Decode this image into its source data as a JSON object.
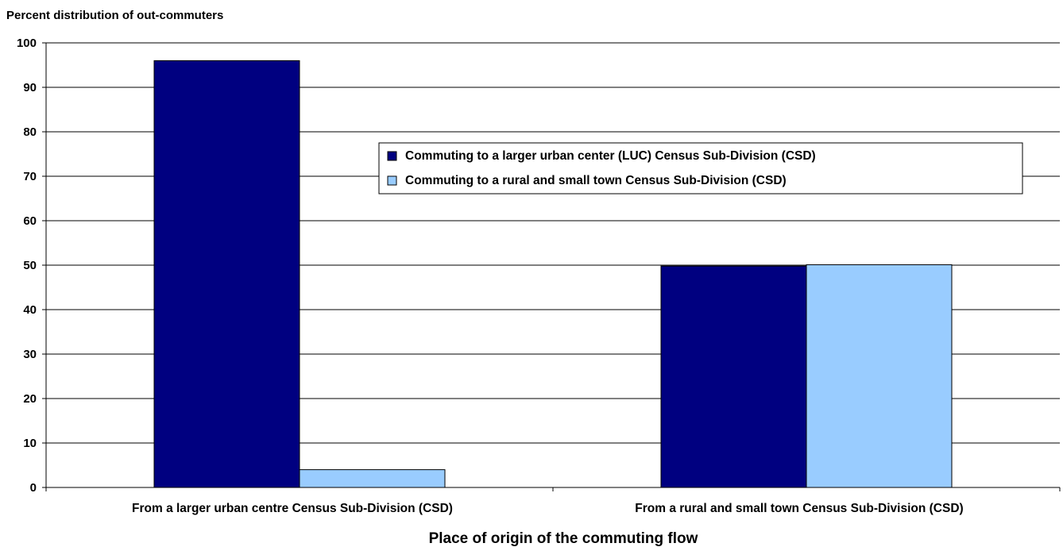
{
  "chart_data": {
    "type": "bar",
    "title": "Percent distribution of out-commuters",
    "xlabel": "Place of origin of the commuting flow",
    "ylabel": "",
    "ylim": [
      0,
      100
    ],
    "yticks": [
      "0",
      "10",
      "20",
      "30",
      "40",
      "50",
      "60",
      "70",
      "80",
      "90",
      "100"
    ],
    "grid": true,
    "legend_position": "upper-right",
    "categories": [
      "From a larger urban centre Census Sub-Division (CSD)",
      "From a rural and small town Census Sub-Division (CSD)"
    ],
    "series": [
      {
        "name": "Commuting to a larger urban center (LUC) Census Sub-Division (CSD)",
        "color": "#000080",
        "values": [
          96,
          49.8
        ]
      },
      {
        "name": "Commuting to a rural and small town Census Sub-Division (CSD)",
        "color": "#99CCFF",
        "values": [
          4,
          50.1
        ]
      }
    ]
  }
}
